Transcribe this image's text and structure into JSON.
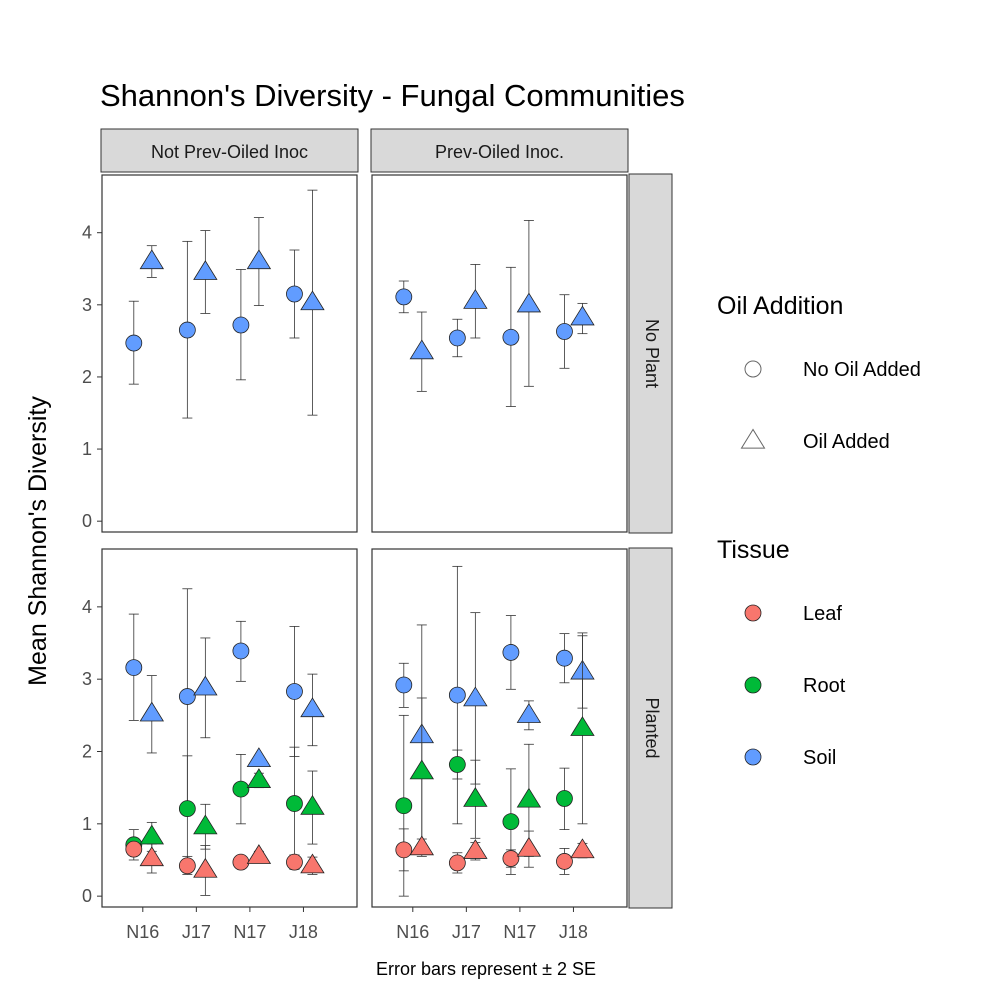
{
  "chart_data": {
    "type": "scatter",
    "title": "Shannon's Diversity - Fungal Communities",
    "ylabel": "Mean Shannon's Diversity",
    "caption": "Error bars represent ± 2 SE",
    "ylim": [
      -0.15,
      4.8
    ],
    "yticks": [
      0,
      1,
      2,
      3,
      4
    ],
    "categories": [
      "N16",
      "J17",
      "N17",
      "J18"
    ],
    "col_facets": [
      "Not Prev-Oiled Inoc",
      "Prev-Oiled Inoc."
    ],
    "row_facets": [
      "No Plant",
      "Planted"
    ],
    "legend_oil": {
      "title": "Oil Addition",
      "items": [
        {
          "label": "No Oil Added",
          "shape": "circle"
        },
        {
          "label": "Oil Added",
          "shape": "triangle"
        }
      ]
    },
    "legend_tissue": {
      "title": "Tissue",
      "items": [
        {
          "label": "Leaf",
          "color": "#F8766D"
        },
        {
          "label": "Root",
          "color": "#00BA38"
        },
        {
          "label": "Soil",
          "color": "#619CFF"
        }
      ]
    },
    "points": [
      {
        "col": 0,
        "row": 0,
        "tissue": "Soil",
        "oil": "No Oil Added",
        "x": "N16",
        "y": 2.47,
        "lo": 1.9,
        "hi": 3.05
      },
      {
        "col": 0,
        "row": 0,
        "tissue": "Soil",
        "oil": "Oil Added",
        "x": "N16",
        "y": 3.6,
        "lo": 3.38,
        "hi": 3.82
      },
      {
        "col": 0,
        "row": 0,
        "tissue": "Soil",
        "oil": "No Oil Added",
        "x": "J17",
        "y": 2.65,
        "lo": 1.43,
        "hi": 3.88
      },
      {
        "col": 0,
        "row": 0,
        "tissue": "Soil",
        "oil": "Oil Added",
        "x": "J17",
        "y": 3.45,
        "lo": 2.88,
        "hi": 4.03
      },
      {
        "col": 0,
        "row": 0,
        "tissue": "Soil",
        "oil": "No Oil Added",
        "x": "N17",
        "y": 2.72,
        "lo": 1.96,
        "hi": 3.49
      },
      {
        "col": 0,
        "row": 0,
        "tissue": "Soil",
        "oil": "Oil Added",
        "x": "N17",
        "y": 3.6,
        "lo": 2.99,
        "hi": 4.21
      },
      {
        "col": 0,
        "row": 0,
        "tissue": "Soil",
        "oil": "No Oil Added",
        "x": "J18",
        "y": 3.15,
        "lo": 2.54,
        "hi": 3.76
      },
      {
        "col": 0,
        "row": 0,
        "tissue": "Soil",
        "oil": "Oil Added",
        "x": "J18",
        "y": 3.03,
        "lo": 1.47,
        "hi": 4.59
      },
      {
        "col": 1,
        "row": 0,
        "tissue": "Soil",
        "oil": "No Oil Added",
        "x": "N16",
        "y": 3.11,
        "lo": 2.89,
        "hi": 3.33
      },
      {
        "col": 1,
        "row": 0,
        "tissue": "Soil",
        "oil": "Oil Added",
        "x": "N16",
        "y": 2.35,
        "lo": 1.8,
        "hi": 2.9
      },
      {
        "col": 1,
        "row": 0,
        "tissue": "Soil",
        "oil": "No Oil Added",
        "x": "J17",
        "y": 2.54,
        "lo": 2.28,
        "hi": 2.8
      },
      {
        "col": 1,
        "row": 0,
        "tissue": "Soil",
        "oil": "Oil Added",
        "x": "J17",
        "y": 3.05,
        "lo": 2.54,
        "hi": 3.56
      },
      {
        "col": 1,
        "row": 0,
        "tissue": "Soil",
        "oil": "No Oil Added",
        "x": "N17",
        "y": 2.55,
        "lo": 1.59,
        "hi": 3.52
      },
      {
        "col": 1,
        "row": 0,
        "tissue": "Soil",
        "oil": "Oil Added",
        "x": "N17",
        "y": 3.0,
        "lo": 1.87,
        "hi": 4.17
      },
      {
        "col": 1,
        "row": 0,
        "tissue": "Soil",
        "oil": "No Oil Added",
        "x": "J18",
        "y": 2.63,
        "lo": 2.12,
        "hi": 3.14
      },
      {
        "col": 1,
        "row": 0,
        "tissue": "Soil",
        "oil": "Oil Added",
        "x": "J18",
        "y": 2.82,
        "lo": 2.6,
        "hi": 3.02
      },
      {
        "col": 0,
        "row": 1,
        "tissue": "Soil",
        "oil": "No Oil Added",
        "x": "N16",
        "y": 3.16,
        "lo": 2.43,
        "hi": 3.9
      },
      {
        "col": 0,
        "row": 1,
        "tissue": "Soil",
        "oil": "Oil Added",
        "x": "N16",
        "y": 2.52,
        "lo": 1.98,
        "hi": 3.05
      },
      {
        "col": 0,
        "row": 1,
        "tissue": "Soil",
        "oil": "No Oil Added",
        "x": "J17",
        "y": 2.76,
        "lo": 1.27,
        "hi": 4.25
      },
      {
        "col": 0,
        "row": 1,
        "tissue": "Soil",
        "oil": "Oil Added",
        "x": "J17",
        "y": 2.88,
        "lo": 2.19,
        "hi": 3.57
      },
      {
        "col": 0,
        "row": 1,
        "tissue": "Soil",
        "oil": "No Oil Added",
        "x": "N17",
        "y": 3.39,
        "lo": 2.97,
        "hi": 3.8
      },
      {
        "col": 0,
        "row": 1,
        "tissue": "Soil",
        "oil": "Oil Added",
        "x": "N17",
        "y": 1.89,
        "lo": 1.87,
        "hi": 1.91
      },
      {
        "col": 0,
        "row": 1,
        "tissue": "Soil",
        "oil": "No Oil Added",
        "x": "J18",
        "y": 2.83,
        "lo": 1.93,
        "hi": 3.73
      },
      {
        "col": 0,
        "row": 1,
        "tissue": "Soil",
        "oil": "Oil Added",
        "x": "J18",
        "y": 2.58,
        "lo": 2.08,
        "hi": 3.07
      },
      {
        "col": 0,
        "row": 1,
        "tissue": "Root",
        "oil": "No Oil Added",
        "x": "N16",
        "y": 0.71,
        "lo": 0.5,
        "hi": 0.92
      },
      {
        "col": 0,
        "row": 1,
        "tissue": "Root",
        "oil": "Oil Added",
        "x": "N16",
        "y": 0.82,
        "lo": 0.62,
        "hi": 1.02
      },
      {
        "col": 0,
        "row": 1,
        "tissue": "Root",
        "oil": "No Oil Added",
        "x": "J17",
        "y": 1.21,
        "lo": 0.49,
        "hi": 1.94
      },
      {
        "col": 0,
        "row": 1,
        "tissue": "Root",
        "oil": "Oil Added",
        "x": "J17",
        "y": 0.96,
        "lo": 0.65,
        "hi": 1.27
      },
      {
        "col": 0,
        "row": 1,
        "tissue": "Root",
        "oil": "No Oil Added",
        "x": "N17",
        "y": 1.48,
        "lo": 1.0,
        "hi": 1.96
      },
      {
        "col": 0,
        "row": 1,
        "tissue": "Root",
        "oil": "Oil Added",
        "x": "N17",
        "y": 1.6,
        "lo": 1.5,
        "hi": 1.7
      },
      {
        "col": 0,
        "row": 1,
        "tissue": "Root",
        "oil": "No Oil Added",
        "x": "J18",
        "y": 1.28,
        "lo": 0.5,
        "hi": 2.06
      },
      {
        "col": 0,
        "row": 1,
        "tissue": "Root",
        "oil": "Oil Added",
        "x": "J18",
        "y": 1.23,
        "lo": 0.72,
        "hi": 1.73
      },
      {
        "col": 0,
        "row": 1,
        "tissue": "Leaf",
        "oil": "No Oil Added",
        "x": "N16",
        "y": 0.65,
        "lo": 0.58,
        "hi": 0.72
      },
      {
        "col": 0,
        "row": 1,
        "tissue": "Leaf",
        "oil": "Oil Added",
        "x": "N16",
        "y": 0.52,
        "lo": 0.32,
        "hi": 0.72
      },
      {
        "col": 0,
        "row": 1,
        "tissue": "Leaf",
        "oil": "No Oil Added",
        "x": "J17",
        "y": 0.42,
        "lo": 0.3,
        "hi": 0.55
      },
      {
        "col": 0,
        "row": 1,
        "tissue": "Leaf",
        "oil": "Oil Added",
        "x": "J17",
        "y": 0.36,
        "lo": 0.01,
        "hi": 0.7
      },
      {
        "col": 0,
        "row": 1,
        "tissue": "Leaf",
        "oil": "No Oil Added",
        "x": "N17",
        "y": 0.47,
        "lo": 0.42,
        "hi": 0.52
      },
      {
        "col": 0,
        "row": 1,
        "tissue": "Leaf",
        "oil": "Oil Added",
        "x": "N17",
        "y": 0.55,
        "lo": 0.48,
        "hi": 0.62
      },
      {
        "col": 0,
        "row": 1,
        "tissue": "Leaf",
        "oil": "No Oil Added",
        "x": "J18",
        "y": 0.47,
        "lo": 0.37,
        "hi": 0.57
      },
      {
        "col": 0,
        "row": 1,
        "tissue": "Leaf",
        "oil": "Oil Added",
        "x": "J18",
        "y": 0.42,
        "lo": 0.3,
        "hi": 0.54
      },
      {
        "col": 1,
        "row": 1,
        "tissue": "Soil",
        "oil": "No Oil Added",
        "x": "N16",
        "y": 2.92,
        "lo": 2.61,
        "hi": 3.22
      },
      {
        "col": 1,
        "row": 1,
        "tissue": "Soil",
        "oil": "Oil Added",
        "x": "N16",
        "y": 2.22,
        "lo": 0.69,
        "hi": 3.75
      },
      {
        "col": 1,
        "row": 1,
        "tissue": "Soil",
        "oil": "No Oil Added",
        "x": "J17",
        "y": 2.78,
        "lo": 1.0,
        "hi": 4.56
      },
      {
        "col": 1,
        "row": 1,
        "tissue": "Soil",
        "oil": "Oil Added",
        "x": "J17",
        "y": 2.73,
        "lo": 1.55,
        "hi": 3.92
      },
      {
        "col": 1,
        "row": 1,
        "tissue": "Soil",
        "oil": "No Oil Added",
        "x": "N17",
        "y": 3.37,
        "lo": 2.86,
        "hi": 3.88
      },
      {
        "col": 1,
        "row": 1,
        "tissue": "Soil",
        "oil": "Oil Added",
        "x": "N17",
        "y": 2.5,
        "lo": 2.3,
        "hi": 2.7
      },
      {
        "col": 1,
        "row": 1,
        "tissue": "Soil",
        "oil": "No Oil Added",
        "x": "J18",
        "y": 3.29,
        "lo": 2.95,
        "hi": 3.63
      },
      {
        "col": 1,
        "row": 1,
        "tissue": "Soil",
        "oil": "Oil Added",
        "x": "J18",
        "y": 3.1,
        "lo": 2.6,
        "hi": 3.6
      },
      {
        "col": 1,
        "row": 1,
        "tissue": "Root",
        "oil": "No Oil Added",
        "x": "N16",
        "y": 1.25,
        "lo": 0.0,
        "hi": 2.5
      },
      {
        "col": 1,
        "row": 1,
        "tissue": "Root",
        "oil": "Oil Added",
        "x": "N16",
        "y": 1.72,
        "lo": 0.7,
        "hi": 2.74
      },
      {
        "col": 1,
        "row": 1,
        "tissue": "Root",
        "oil": "No Oil Added",
        "x": "J17",
        "y": 1.82,
        "lo": 1.62,
        "hi": 2.02
      },
      {
        "col": 1,
        "row": 1,
        "tissue": "Root",
        "oil": "Oil Added",
        "x": "J17",
        "y": 1.34,
        "lo": 0.8,
        "hi": 1.88
      },
      {
        "col": 1,
        "row": 1,
        "tissue": "Root",
        "oil": "No Oil Added",
        "x": "N17",
        "y": 1.03,
        "lo": 0.3,
        "hi": 1.76
      },
      {
        "col": 1,
        "row": 1,
        "tissue": "Root",
        "oil": "Oil Added",
        "x": "N17",
        "y": 1.33,
        "lo": 0.55,
        "hi": 2.1
      },
      {
        "col": 1,
        "row": 1,
        "tissue": "Root",
        "oil": "No Oil Added",
        "x": "J18",
        "y": 1.35,
        "lo": 0.92,
        "hi": 1.77
      },
      {
        "col": 1,
        "row": 1,
        "tissue": "Root",
        "oil": "Oil Added",
        "x": "J18",
        "y": 2.32,
        "lo": 1.0,
        "hi": 3.64
      },
      {
        "col": 1,
        "row": 1,
        "tissue": "Leaf",
        "oil": "No Oil Added",
        "x": "N16",
        "y": 0.64,
        "lo": 0.35,
        "hi": 0.93
      },
      {
        "col": 1,
        "row": 1,
        "tissue": "Leaf",
        "oil": "Oil Added",
        "x": "N16",
        "y": 0.67,
        "lo": 0.55,
        "hi": 0.79
      },
      {
        "col": 1,
        "row": 1,
        "tissue": "Leaf",
        "oil": "No Oil Added",
        "x": "J17",
        "y": 0.46,
        "lo": 0.32,
        "hi": 0.6
      },
      {
        "col": 1,
        "row": 1,
        "tissue": "Leaf",
        "oil": "Oil Added",
        "x": "J17",
        "y": 0.62,
        "lo": 0.5,
        "hi": 0.74
      },
      {
        "col": 1,
        "row": 1,
        "tissue": "Leaf",
        "oil": "No Oil Added",
        "x": "N17",
        "y": 0.52,
        "lo": 0.4,
        "hi": 0.64
      },
      {
        "col": 1,
        "row": 1,
        "tissue": "Leaf",
        "oil": "Oil Added",
        "x": "N17",
        "y": 0.65,
        "lo": 0.4,
        "hi": 0.9
      },
      {
        "col": 1,
        "row": 1,
        "tissue": "Leaf",
        "oil": "No Oil Added",
        "x": "J18",
        "y": 0.48,
        "lo": 0.3,
        "hi": 0.66
      },
      {
        "col": 1,
        "row": 1,
        "tissue": "Leaf",
        "oil": "Oil Added",
        "x": "J18",
        "y": 0.63,
        "lo": 0.53,
        "hi": 0.73
      }
    ]
  }
}
